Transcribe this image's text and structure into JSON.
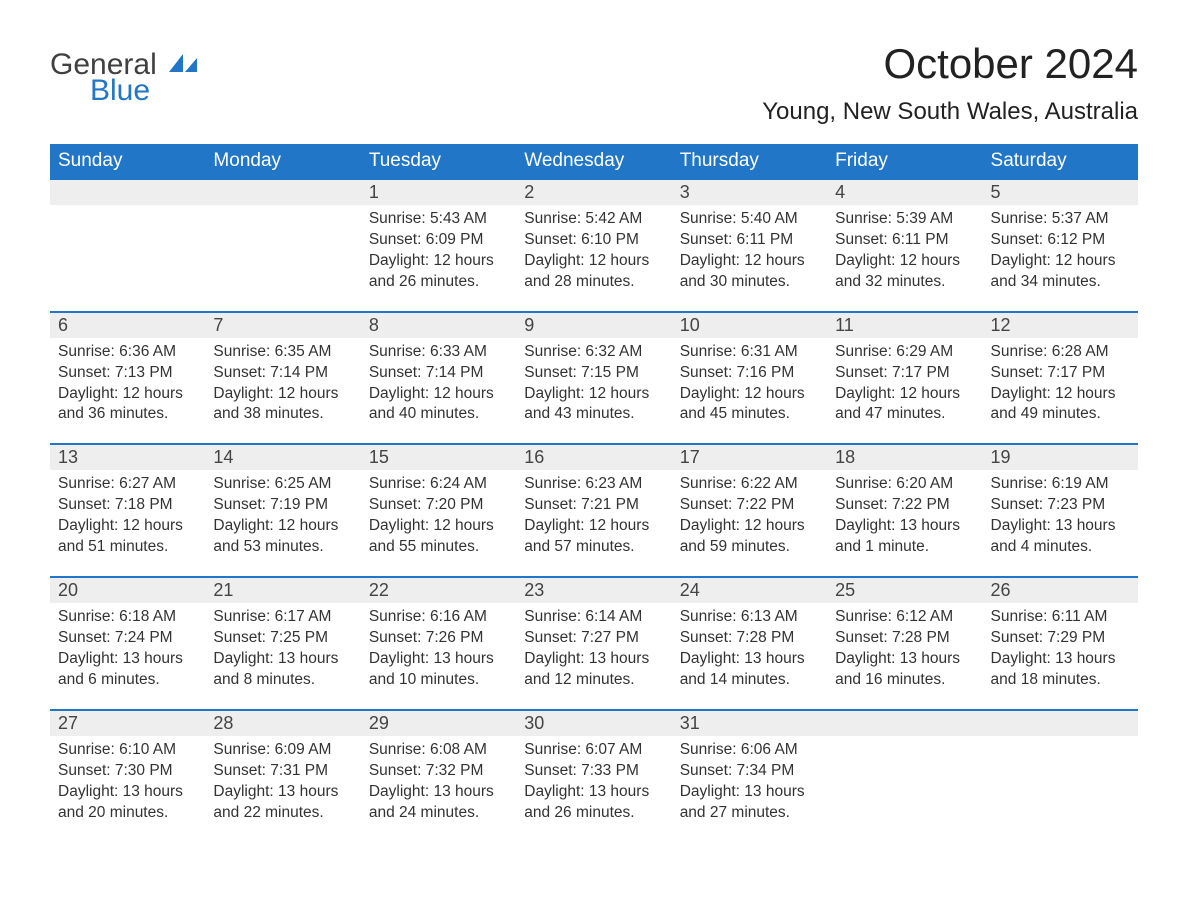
{
  "logo": {
    "general": "General",
    "blue": "Blue"
  },
  "title": "October 2024",
  "location": "Young, New South Wales, Australia",
  "dayHeaders": [
    "Sunday",
    "Monday",
    "Tuesday",
    "Wednesday",
    "Thursday",
    "Friday",
    "Saturday"
  ],
  "colors": {
    "headerBg": "#2176c7",
    "headerText": "#ffffff",
    "dayNumBg": "#eeeeee",
    "rowBorder": "#2176c7",
    "bodyText": "#333333",
    "logoBlue": "#2176c7",
    "logoGray": "#404040",
    "background": "#ffffff"
  },
  "weeks": [
    [
      null,
      null,
      {
        "n": "1",
        "sunrise": "Sunrise: 5:43 AM",
        "sunset": "Sunset: 6:09 PM",
        "daylight": "Daylight: 12 hours and 26 minutes."
      },
      {
        "n": "2",
        "sunrise": "Sunrise: 5:42 AM",
        "sunset": "Sunset: 6:10 PM",
        "daylight": "Daylight: 12 hours and 28 minutes."
      },
      {
        "n": "3",
        "sunrise": "Sunrise: 5:40 AM",
        "sunset": "Sunset: 6:11 PM",
        "daylight": "Daylight: 12 hours and 30 minutes."
      },
      {
        "n": "4",
        "sunrise": "Sunrise: 5:39 AM",
        "sunset": "Sunset: 6:11 PM",
        "daylight": "Daylight: 12 hours and 32 minutes."
      },
      {
        "n": "5",
        "sunrise": "Sunrise: 5:37 AM",
        "sunset": "Sunset: 6:12 PM",
        "daylight": "Daylight: 12 hours and 34 minutes."
      }
    ],
    [
      {
        "n": "6",
        "sunrise": "Sunrise: 6:36 AM",
        "sunset": "Sunset: 7:13 PM",
        "daylight": "Daylight: 12 hours and 36 minutes."
      },
      {
        "n": "7",
        "sunrise": "Sunrise: 6:35 AM",
        "sunset": "Sunset: 7:14 PM",
        "daylight": "Daylight: 12 hours and 38 minutes."
      },
      {
        "n": "8",
        "sunrise": "Sunrise: 6:33 AM",
        "sunset": "Sunset: 7:14 PM",
        "daylight": "Daylight: 12 hours and 40 minutes."
      },
      {
        "n": "9",
        "sunrise": "Sunrise: 6:32 AM",
        "sunset": "Sunset: 7:15 PM",
        "daylight": "Daylight: 12 hours and 43 minutes."
      },
      {
        "n": "10",
        "sunrise": "Sunrise: 6:31 AM",
        "sunset": "Sunset: 7:16 PM",
        "daylight": "Daylight: 12 hours and 45 minutes."
      },
      {
        "n": "11",
        "sunrise": "Sunrise: 6:29 AM",
        "sunset": "Sunset: 7:17 PM",
        "daylight": "Daylight: 12 hours and 47 minutes."
      },
      {
        "n": "12",
        "sunrise": "Sunrise: 6:28 AM",
        "sunset": "Sunset: 7:17 PM",
        "daylight": "Daylight: 12 hours and 49 minutes."
      }
    ],
    [
      {
        "n": "13",
        "sunrise": "Sunrise: 6:27 AM",
        "sunset": "Sunset: 7:18 PM",
        "daylight": "Daylight: 12 hours and 51 minutes."
      },
      {
        "n": "14",
        "sunrise": "Sunrise: 6:25 AM",
        "sunset": "Sunset: 7:19 PM",
        "daylight": "Daylight: 12 hours and 53 minutes."
      },
      {
        "n": "15",
        "sunrise": "Sunrise: 6:24 AM",
        "sunset": "Sunset: 7:20 PM",
        "daylight": "Daylight: 12 hours and 55 minutes."
      },
      {
        "n": "16",
        "sunrise": "Sunrise: 6:23 AM",
        "sunset": "Sunset: 7:21 PM",
        "daylight": "Daylight: 12 hours and 57 minutes."
      },
      {
        "n": "17",
        "sunrise": "Sunrise: 6:22 AM",
        "sunset": "Sunset: 7:22 PM",
        "daylight": "Daylight: 12 hours and 59 minutes."
      },
      {
        "n": "18",
        "sunrise": "Sunrise: 6:20 AM",
        "sunset": "Sunset: 7:22 PM",
        "daylight": "Daylight: 13 hours and 1 minute."
      },
      {
        "n": "19",
        "sunrise": "Sunrise: 6:19 AM",
        "sunset": "Sunset: 7:23 PM",
        "daylight": "Daylight: 13 hours and 4 minutes."
      }
    ],
    [
      {
        "n": "20",
        "sunrise": "Sunrise: 6:18 AM",
        "sunset": "Sunset: 7:24 PM",
        "daylight": "Daylight: 13 hours and 6 minutes."
      },
      {
        "n": "21",
        "sunrise": "Sunrise: 6:17 AM",
        "sunset": "Sunset: 7:25 PM",
        "daylight": "Daylight: 13 hours and 8 minutes."
      },
      {
        "n": "22",
        "sunrise": "Sunrise: 6:16 AM",
        "sunset": "Sunset: 7:26 PM",
        "daylight": "Daylight: 13 hours and 10 minutes."
      },
      {
        "n": "23",
        "sunrise": "Sunrise: 6:14 AM",
        "sunset": "Sunset: 7:27 PM",
        "daylight": "Daylight: 13 hours and 12 minutes."
      },
      {
        "n": "24",
        "sunrise": "Sunrise: 6:13 AM",
        "sunset": "Sunset: 7:28 PM",
        "daylight": "Daylight: 13 hours and 14 minutes."
      },
      {
        "n": "25",
        "sunrise": "Sunrise: 6:12 AM",
        "sunset": "Sunset: 7:28 PM",
        "daylight": "Daylight: 13 hours and 16 minutes."
      },
      {
        "n": "26",
        "sunrise": "Sunrise: 6:11 AM",
        "sunset": "Sunset: 7:29 PM",
        "daylight": "Daylight: 13 hours and 18 minutes."
      }
    ],
    [
      {
        "n": "27",
        "sunrise": "Sunrise: 6:10 AM",
        "sunset": "Sunset: 7:30 PM",
        "daylight": "Daylight: 13 hours and 20 minutes."
      },
      {
        "n": "28",
        "sunrise": "Sunrise: 6:09 AM",
        "sunset": "Sunset: 7:31 PM",
        "daylight": "Daylight: 13 hours and 22 minutes."
      },
      {
        "n": "29",
        "sunrise": "Sunrise: 6:08 AM",
        "sunset": "Sunset: 7:32 PM",
        "daylight": "Daylight: 13 hours and 24 minutes."
      },
      {
        "n": "30",
        "sunrise": "Sunrise: 6:07 AM",
        "sunset": "Sunset: 7:33 PM",
        "daylight": "Daylight: 13 hours and 26 minutes."
      },
      {
        "n": "31",
        "sunrise": "Sunrise: 6:06 AM",
        "sunset": "Sunset: 7:34 PM",
        "daylight": "Daylight: 13 hours and 27 minutes."
      },
      null,
      null
    ]
  ]
}
